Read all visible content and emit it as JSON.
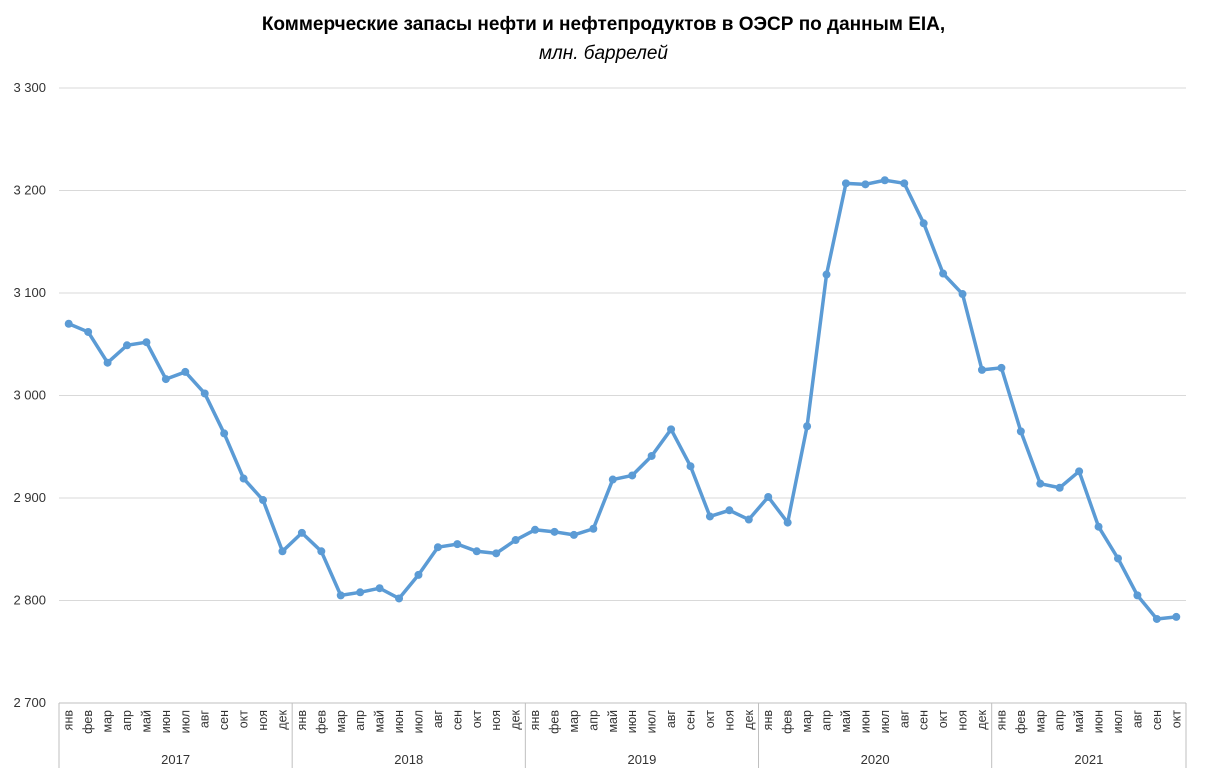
{
  "chart_data": {
    "type": "line",
    "title": "Коммерческие запасы нефти и нефтепродуктов в ОЭСР по данным EIA,",
    "subtitle": "млн. баррелей",
    "ylim": [
      2700,
      3300
    ],
    "yticks": [
      2700,
      2800,
      2900,
      3000,
      3100,
      3200,
      3300
    ],
    "ytick_labels": [
      "2 700",
      "2 800",
      "2 900",
      "3 000",
      "3 100",
      "3 200",
      "3 300"
    ],
    "grid": "horizontal",
    "legend": "none",
    "color": "#5b9bd5",
    "years": [
      {
        "label": "2017",
        "months": 12
      },
      {
        "label": "2018",
        "months": 12
      },
      {
        "label": "2019",
        "months": 12
      },
      {
        "label": "2020",
        "months": 12
      },
      {
        "label": "2021",
        "months": 10
      }
    ],
    "categories": [
      "янв",
      "фев",
      "мар",
      "апр",
      "май",
      "июн",
      "июл",
      "авг",
      "сен",
      "окт",
      "ноя",
      "дек",
      "янв",
      "фев",
      "мар",
      "апр",
      "май",
      "июн",
      "июл",
      "авг",
      "сен",
      "окт",
      "ноя",
      "дек",
      "янв",
      "фев",
      "мар",
      "апр",
      "май",
      "июн",
      "июл",
      "авг",
      "сен",
      "окт",
      "ноя",
      "дек",
      "янв",
      "фев",
      "мар",
      "апр",
      "май",
      "июн",
      "июл",
      "авг",
      "сен",
      "окт",
      "ноя",
      "дек",
      "янв",
      "фев",
      "мар",
      "апр",
      "май",
      "июн",
      "июл",
      "авг",
      "сен",
      "окт"
    ],
    "values": [
      3070,
      3062,
      3032,
      3049,
      3052,
      3016,
      3023,
      3002,
      2963,
      2919,
      2898,
      2848,
      2866,
      2848,
      2805,
      2808,
      2812,
      2802,
      2825,
      2852,
      2855,
      2848,
      2846,
      2859,
      2869,
      2867,
      2864,
      2870,
      2918,
      2922,
      2941,
      2967,
      2931,
      2882,
      2888,
      2879,
      2901,
      2876,
      2970,
      3118,
      3207,
      3206,
      3210,
      3207,
      3168,
      3119,
      3099,
      3025,
      3027,
      2965,
      2914,
      2910,
      2926,
      2872,
      2841,
      2805,
      2782,
      2784
    ]
  }
}
